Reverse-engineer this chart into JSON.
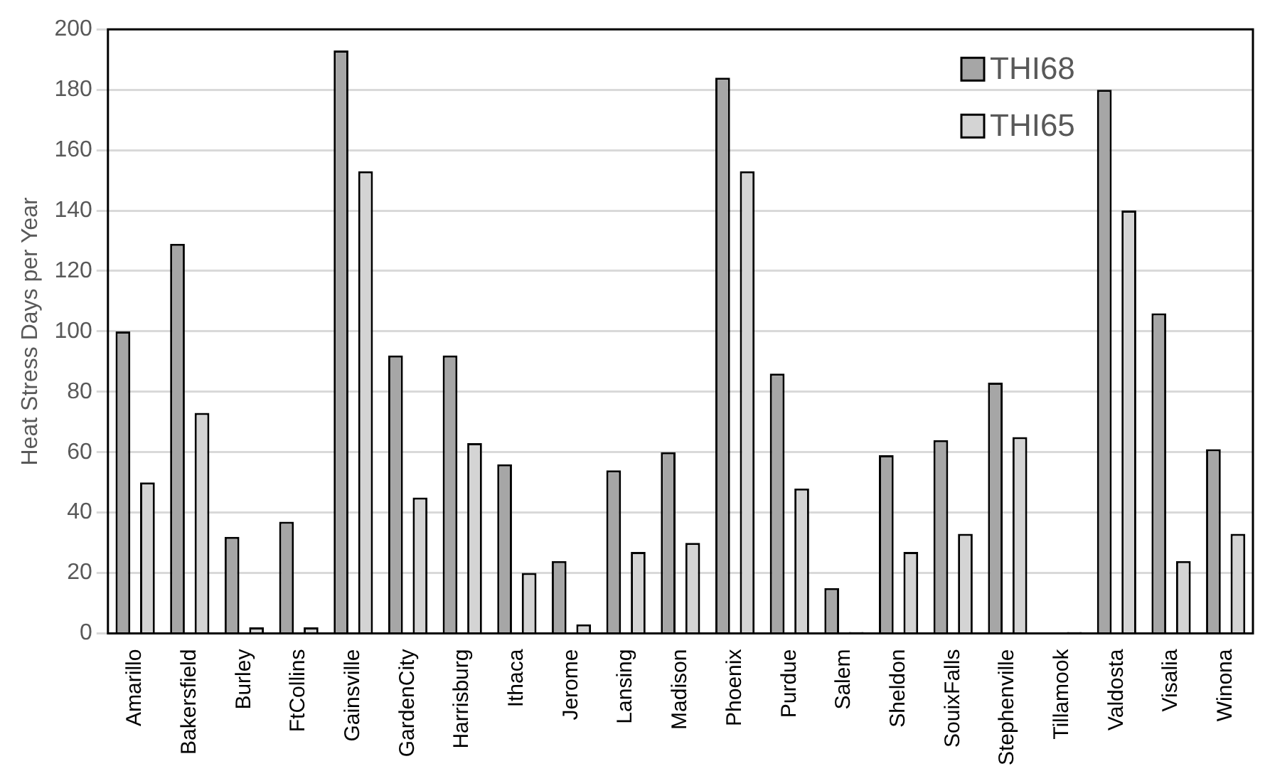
{
  "chart_data": {
    "type": "bar",
    "ylabel": "Heat Stress Days per Year",
    "categories": [
      "Amarillo",
      "Bakersfield",
      "Burley",
      "FtCollins",
      "Gainsville",
      "GardenCity",
      "Harrisburg",
      "Ithaca",
      "Jerome",
      "Lansing",
      "Madison",
      "Phoenix",
      "Purdue",
      "Salem",
      "Sheldon",
      "SouixFalls",
      "Stephenville",
      "Tillamook",
      "Valdosta",
      "Visalia",
      "Winona"
    ],
    "series": [
      {
        "name": "THI68",
        "color": "#a6a6a6",
        "values": [
          100,
          129,
          32,
          37,
          193,
          92,
          92,
          56,
          24,
          54,
          60,
          184,
          86,
          15,
          59,
          64,
          83,
          null,
          180,
          106,
          61
        ]
      },
      {
        "name": "THI65",
        "color": "#d4d4d4",
        "values": [
          50,
          73,
          2,
          2,
          153,
          45,
          63,
          20,
          3,
          27,
          30,
          153,
          48,
          0.5,
          27,
          33,
          65,
          0.5,
          140,
          24,
          33
        ]
      }
    ],
    "ylim": [
      0,
      200
    ],
    "yticks": [
      0,
      20,
      40,
      60,
      80,
      100,
      120,
      140,
      160,
      180,
      200
    ],
    "grid": "y",
    "legend": "top right"
  }
}
